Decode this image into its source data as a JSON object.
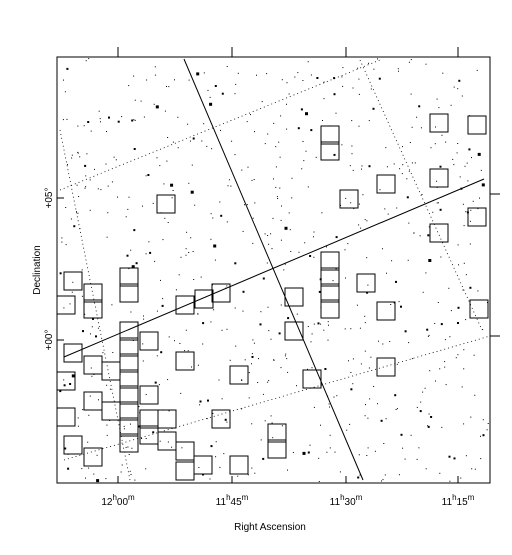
{
  "figure": {
    "x_axis_label": "Right Ascension",
    "y_axis_label": "Declination",
    "x_ticks": [
      {
        "hours": "12",
        "h": "h",
        "minutes": "00",
        "m": "m"
      },
      {
        "hours": "11",
        "h": "h",
        "minutes": "45",
        "m": "m"
      },
      {
        "hours": "11",
        "h": "h",
        "minutes": "30",
        "m": "m"
      },
      {
        "hours": "11",
        "h": "h",
        "minutes": "15",
        "m": "m"
      }
    ],
    "y_ticks": [
      "+00°",
      "+05°"
    ]
  }
}
